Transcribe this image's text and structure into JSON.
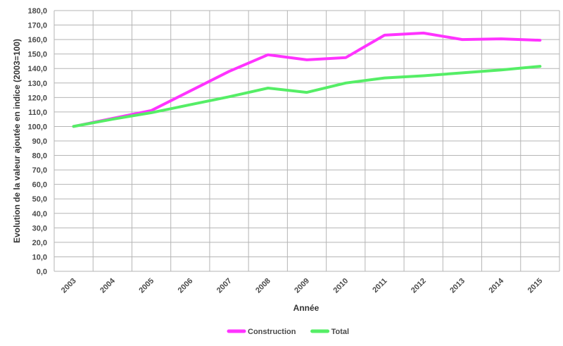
{
  "chart_data": {
    "type": "line",
    "categories": [
      "2003",
      "2004",
      "2005",
      "2006",
      "2007",
      "2008",
      "2009",
      "2010",
      "2011",
      "2012",
      "2013",
      "2014",
      "2015"
    ],
    "series": [
      {
        "name": "Construction",
        "color": "#ff33ff",
        "values": [
          100.0,
          105.5,
          111.0,
          124.5,
          138.0,
          149.5,
          146.0,
          147.5,
          163.0,
          164.5,
          160.0,
          160.5,
          159.5
        ]
      },
      {
        "name": "Total",
        "color": "#55ee66",
        "values": [
          100.0,
          105.0,
          109.5,
          115.0,
          120.5,
          126.5,
          123.5,
          130.0,
          133.5,
          135.0,
          137.0,
          139.0,
          141.5
        ]
      }
    ],
    "xlabel": "Année",
    "ylabel": "Evolution de la valeur ajoutée en indice (2003=100)",
    "ylim": [
      0,
      180
    ],
    "y_step": 10,
    "y_tick_labels": [
      "0,0",
      "10,0",
      "20,0",
      "30,0",
      "40,0",
      "50,0",
      "60,0",
      "70,0",
      "80,0",
      "90,0",
      "100,0",
      "110,0",
      "120,0",
      "130,0",
      "140,0",
      "150,0",
      "160,0",
      "170,0",
      "180,0"
    ],
    "grid": true,
    "legend_position": "bottom-center"
  }
}
